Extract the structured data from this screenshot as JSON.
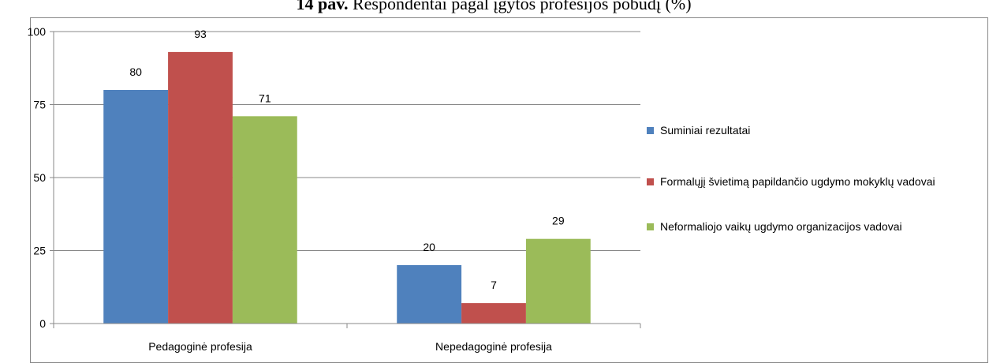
{
  "chart_data": {
    "type": "bar",
    "figure_label": "14 pav.",
    "title": "Respondentai pagal įgytos profesijos pobūdį (%)",
    "categories": [
      "Pedagoginė profesija",
      "Nepedagoginė profesija"
    ],
    "series": [
      {
        "name": "Suminiai rezultatai",
        "color": "#4f81bd",
        "values": [
          80,
          20
        ]
      },
      {
        "name": "Formalųjį švietimą papildančio ugdymo mokyklų vadovai",
        "color": "#c0504d",
        "values": [
          93,
          7
        ]
      },
      {
        "name": "Neformaliojo vaikų ugdymo organizacijos vadovai",
        "color": "#9bbb59",
        "values": [
          71,
          29
        ]
      }
    ],
    "ylim": [
      0,
      100
    ],
    "yticks": [
      0,
      25,
      50,
      75,
      100
    ],
    "grid": true,
    "legend": "right"
  }
}
